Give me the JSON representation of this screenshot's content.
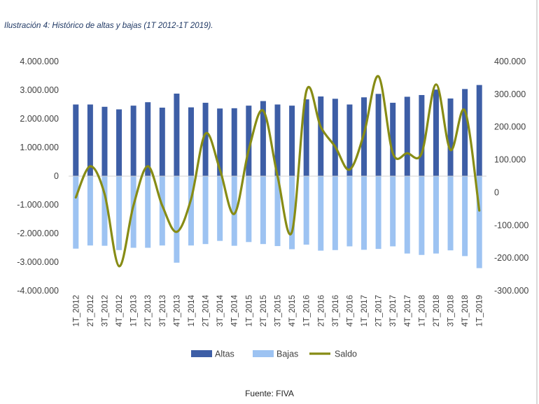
{
  "caption": "Ilustración 4: Histórico de altas y bajas (1T 2012-1T 2019).",
  "source": "Fuente: FIVA",
  "chart_data": {
    "type": "bar",
    "title": "",
    "categories": [
      "1T_2012",
      "2T_2012",
      "3T_2012",
      "4T_2012",
      "1T_2013",
      "2T_2013",
      "3T_2013",
      "4T_2013",
      "1T_2014",
      "2T_2014",
      "3T_2014",
      "4T_2014",
      "1T_2015",
      "2T_2015",
      "3T_2015",
      "4T_2015",
      "1T_2016",
      "2T_2016",
      "3T_2016",
      "4T_2016",
      "1T_2017",
      "2T_2017",
      "3T_2017",
      "4T_2017",
      "1T_2018",
      "2T_2018",
      "3T_2018",
      "4T_2018",
      "1T_2019"
    ],
    "series": [
      {
        "name": "Altas",
        "type": "bar",
        "axis": "left",
        "color": "#3d5ea6",
        "values": [
          2500000,
          2500000,
          2420000,
          2330000,
          2460000,
          2580000,
          2390000,
          2880000,
          2400000,
          2560000,
          2360000,
          2370000,
          2460000,
          2620000,
          2500000,
          2460000,
          2680000,
          2780000,
          2700000,
          2500000,
          2750000,
          2870000,
          2560000,
          2770000,
          2830000,
          3020000,
          2710000,
          3040000,
          3180000
        ]
      },
      {
        "name": "Bajas",
        "type": "bar",
        "axis": "left",
        "color": "#9dc3f2",
        "values": [
          -2530000,
          -2420000,
          -2430000,
          -2580000,
          -2500000,
          -2500000,
          -2420000,
          -3020000,
          -2420000,
          -2370000,
          -2260000,
          -2430000,
          -2300000,
          -2370000,
          -2440000,
          -2550000,
          -2390000,
          -2600000,
          -2580000,
          -2450000,
          -2570000,
          -2540000,
          -2450000,
          -2700000,
          -2750000,
          -2700000,
          -2590000,
          -2790000,
          -3210000
        ]
      },
      {
        "name": "Saldo",
        "type": "line",
        "axis": "right",
        "color": "#878c15",
        "values": [
          -15000,
          80000,
          -5000,
          -225000,
          -40000,
          80000,
          -40000,
          -120000,
          -20000,
          180000,
          70000,
          -65000,
          130000,
          250000,
          50000,
          -120000,
          310000,
          200000,
          140000,
          70000,
          180000,
          355000,
          120000,
          120000,
          120000,
          330000,
          130000,
          250000,
          -55000
        ]
      }
    ],
    "ylim_left": [
      -4000000,
      4000000
    ],
    "ylim_right": [
      -300000,
      400000
    ],
    "yticks_left": [
      "4.000.000",
      "3.000.000",
      "2.000.000",
      "1.000.000",
      "0",
      "-1.000.000",
      "-2.000.000",
      "-3.000.000",
      "-4.000.000"
    ],
    "yticks_right": [
      "400.000",
      "300.000",
      "200.000",
      "100.000",
      "0",
      "-100.000",
      "-200.000",
      "-300.000"
    ],
    "grid": false,
    "legend_position": "bottom",
    "legend": [
      "Altas",
      "Bajas",
      "Saldo"
    ]
  }
}
